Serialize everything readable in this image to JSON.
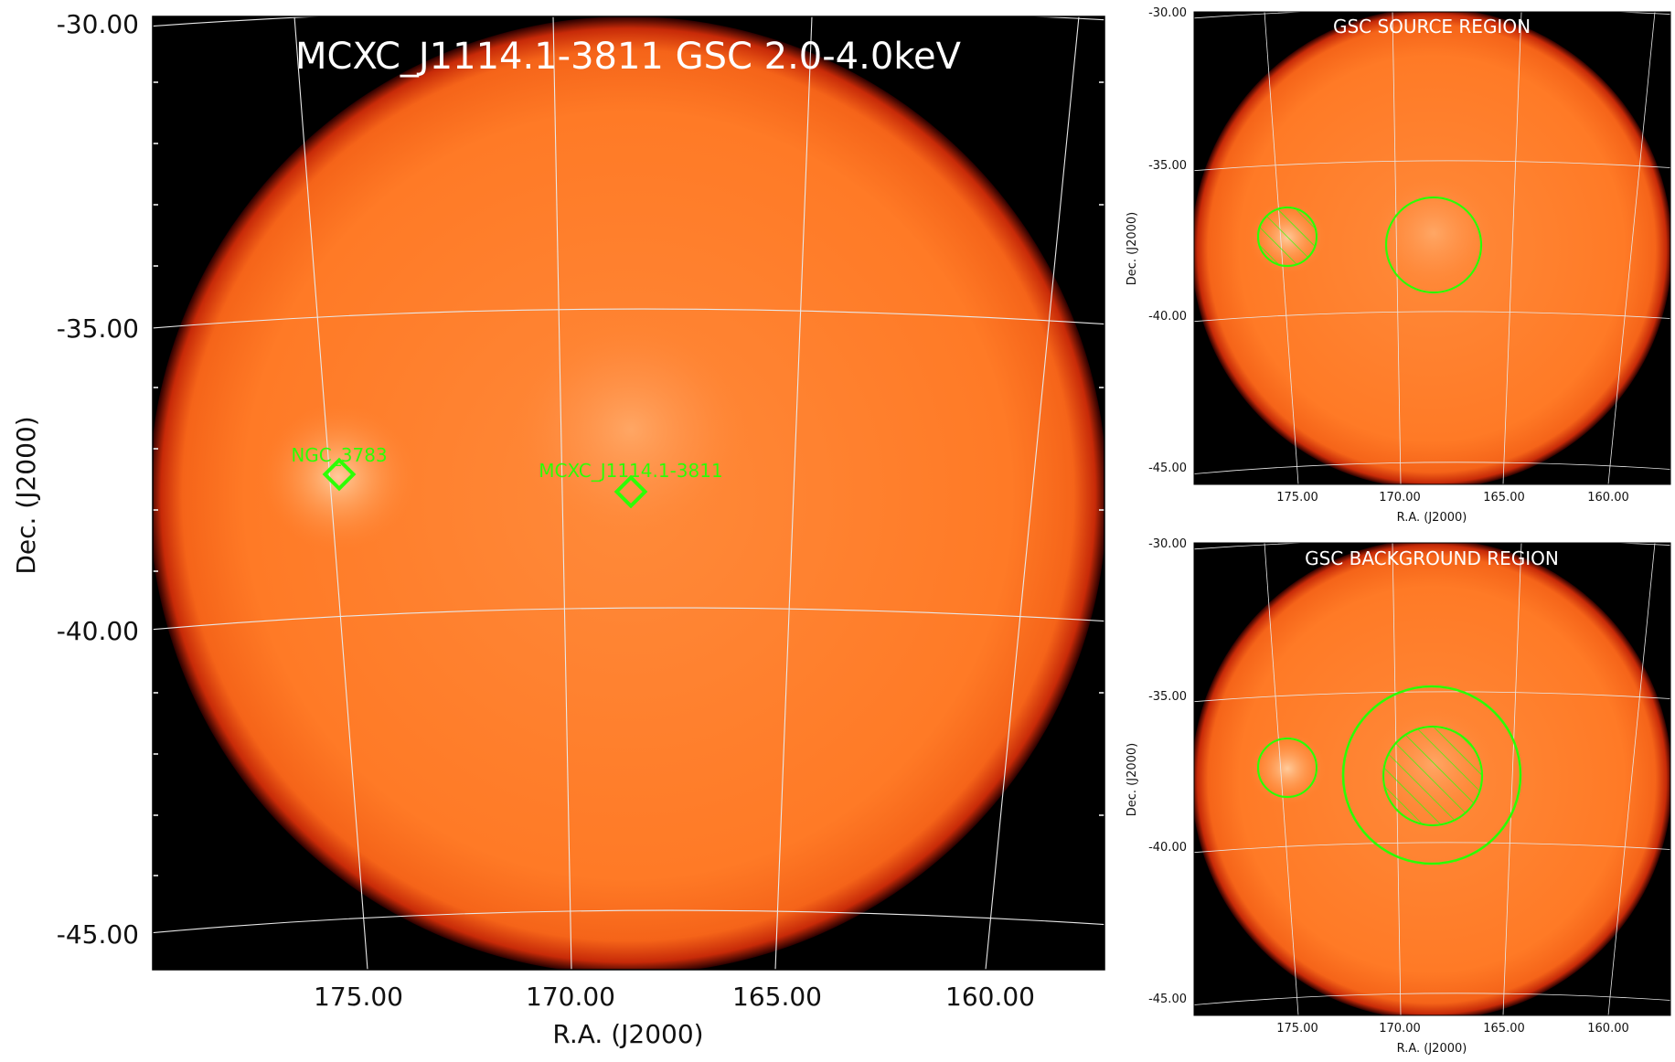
{
  "main": {
    "title": "MCXC_J1114.1-3811 GSC 2.0-4.0keV",
    "xlabel": "R.A. (J2000)",
    "ylabel": "Dec. (J2000)",
    "dec_ticks": [
      "-30.00",
      "-35.00",
      "-40.00",
      "-45.00"
    ],
    "ra_ticks": [
      "175.00",
      "170.00",
      "165.00",
      "160.00"
    ],
    "sources": [
      {
        "label": "NGC_3783"
      },
      {
        "label": "MCXC_J1114.1-3811"
      }
    ]
  },
  "panel_source": {
    "title": "GSC SOURCE REGION",
    "xlabel": "R.A. (J2000)",
    "ylabel": "Dec. (J2000)",
    "dec_ticks": [
      "-30.00",
      "-35.00",
      "-40.00",
      "-45.00"
    ],
    "ra_ticks": [
      "175.00",
      "170.00",
      "165.00",
      "160.00"
    ]
  },
  "panel_background": {
    "title": "GSC BACKGROUND REGION",
    "xlabel": "R.A. (J2000)",
    "ylabel": "Dec. (J2000)",
    "dec_ticks": [
      "-30.00",
      "-35.00",
      "-40.00",
      "-45.00"
    ],
    "ra_ticks": [
      "175.00",
      "170.00",
      "165.00",
      "160.00"
    ]
  },
  "colors": {
    "disk": "#ff7a26",
    "disk_edge": "#c71a00",
    "region": "#2cff05",
    "grid": "#e8e8e8",
    "sky_bg": "#000000"
  }
}
